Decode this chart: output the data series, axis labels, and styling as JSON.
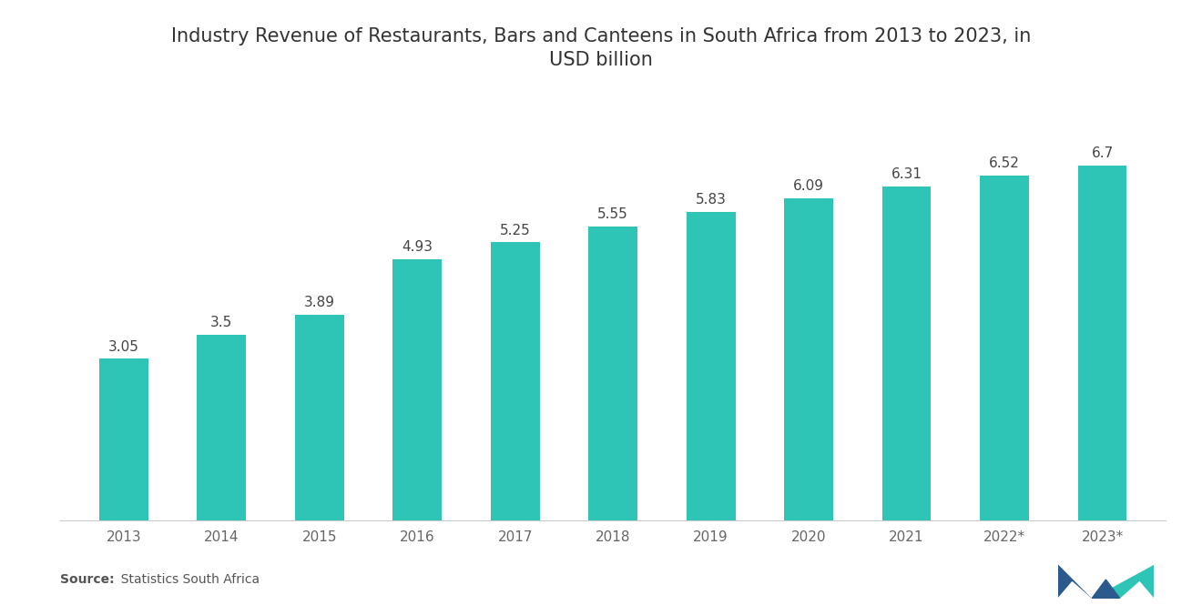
{
  "title": "Industry Revenue of Restaurants, Bars and Canteens in South Africa from 2013 to 2023, in\nUSD billion",
  "categories": [
    "2013",
    "2014",
    "2015",
    "2016",
    "2017",
    "2018",
    "2019",
    "2020",
    "2021",
    "2022*",
    "2023*"
  ],
  "values": [
    3.05,
    3.5,
    3.89,
    4.93,
    5.25,
    5.55,
    5.83,
    6.09,
    6.31,
    6.52,
    6.7
  ],
  "bar_color": "#2EC4B6",
  "background_color": "#ffffff",
  "title_fontsize": 15,
  "label_fontsize": 11,
  "tick_fontsize": 11,
  "source_bold": "Source:",
  "source_normal": "  Statistics South Africa",
  "ylim": [
    0,
    8.0
  ],
  "bar_width": 0.5
}
